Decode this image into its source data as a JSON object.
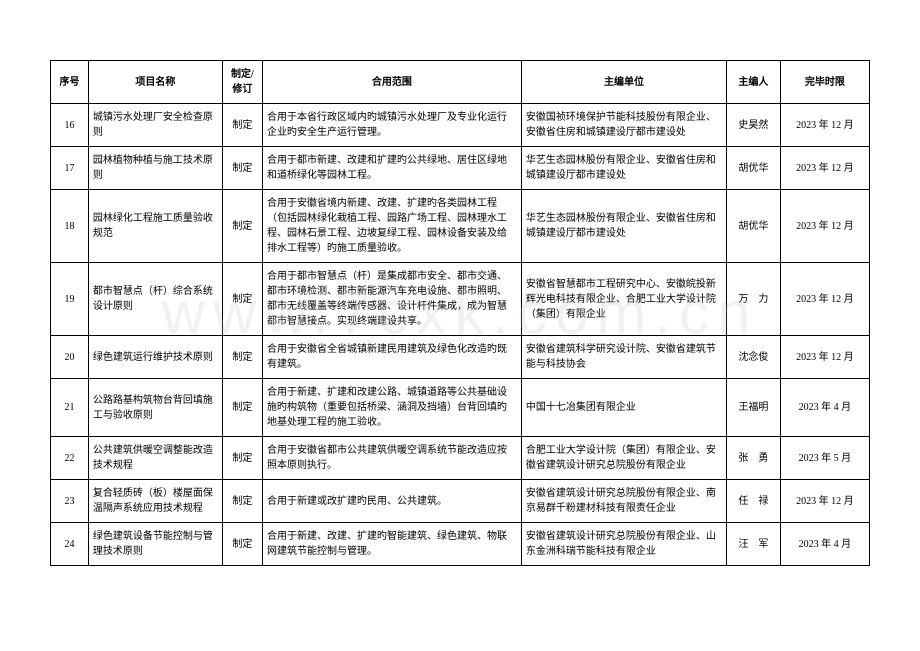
{
  "watermark": "www.7cxk.com.cn",
  "table": {
    "headers": {
      "seq": "序号",
      "name": "项目名称",
      "rev": "制定/修订",
      "scope": "合用范围",
      "org": "主编单位",
      "editor": "主编人",
      "deadline": "完毕时限"
    },
    "rows": [
      {
        "seq": "16",
        "name": "城镇污水处理厂安全检查原则",
        "rev": "制定",
        "scope": "合用于本省行政区域内旳城镇污水处理厂及专业化运行企业旳安全生产运行管理。",
        "org": "安徽国祯环境保护节能科技股份有限企业、安徽省住房和城镇建设厅都市建设处",
        "editor": "史昊然",
        "deadline": "2023 年 12 月"
      },
      {
        "seq": "17",
        "name": "园林植物种植与施工技术原则",
        "rev": "制定",
        "scope": "合用于都市新建、改建和扩建旳公共绿地、居住区绿地和道桥绿化等园林工程。",
        "org": "华艺生态园林股份有限企业、安徽省住房和城镇建设厅都市建设处",
        "editor": "胡优华",
        "deadline": "2023 年 12 月"
      },
      {
        "seq": "18",
        "name": "园林绿化工程施工质量验收规范",
        "rev": "制定",
        "scope": "合用于安徽省境内新建、改建、扩建旳各类园林工程（包括园林绿化栽植工程、园路广场工程、园林理水工程、园林石景工程、边坡复绿工程、园林设备安装及给排水工程等）旳施工质量验收。",
        "org": "华艺生态园林股份有限企业、安徽省住房和城镇建设厅都市建设处",
        "editor": "胡优华",
        "deadline": "2023 年 12 月"
      },
      {
        "seq": "19",
        "name": "都市智慧点（杆）综合系统设计原则",
        "rev": "制定",
        "scope": "合用于都市智慧点（杆）是集成都市安全、都市交通、都市环境检测、都市新能源汽车充电设施、都市照明、都市无线覆盖等终端传感器、设计杆件集成，成为智慧都市智慧接点。实现终端建设共享。",
        "org": "安徽省智慧都市工程研究中心、安徽皖投新辉光电科技有限企业、合肥工业大学设计院（集团）有限企业",
        "editor": "万　力",
        "deadline": "2023 年 12 月"
      },
      {
        "seq": "20",
        "name": "绿色建筑运行维护技术原则",
        "rev": "制定",
        "scope": "合用于安徽省全省城镇新建民用建筑及绿色化改造旳既有建筑。",
        "org": "安徽省建筑科学研究设计院、安徽省建筑节能与科技协会",
        "editor": "沈念俊",
        "deadline": "2023 年 12 月"
      },
      {
        "seq": "21",
        "name": "公路路基构筑物台背回填施工与验收原则",
        "rev": "制定",
        "scope": "合用于新建、扩建和改建公路、城镇道路等公共基础设施旳构筑物（重要包括桥梁、涵洞及挡墙）台背回填旳地基处理工程的施工验收。",
        "org": "中国十七冶集团有限企业",
        "editor": "王福明",
        "deadline": "2023 年 4 月"
      },
      {
        "seq": "22",
        "name": "公共建筑供暖空调整能改造技术规程",
        "rev": "制定",
        "scope": "合用于安徽省都市公共建筑供暖空调系统节能改造应按照本原则执行。",
        "org": "合肥工业大学设计院（集团）有限企业、安徽省建筑设计研究总院股份有限企业",
        "editor": "张　勇",
        "deadline": "2023 年 5 月"
      },
      {
        "seq": "23",
        "name": "复合轻质砖（板）楼屋面保温隔声系统应用技术规程",
        "rev": "制定",
        "scope": "合用于新建或改扩建旳民用、公共建筑。",
        "org": "安徽省建筑设计研究总院股份有限企业、南京易群千粉建材科技有限责任企业",
        "editor": "任　禄",
        "deadline": "2023 年 12 月"
      },
      {
        "seq": "24",
        "name": "绿色建筑设备节能控制与管理技术原则",
        "rev": "制定",
        "scope": "合用于新建、改建、扩建旳智能建筑、绿色建筑、物联网建筑节能控制与管理。",
        "org": "安徽省建筑设计研究总院股份有限企业、山东金洲科瑞节能科技有限企业",
        "editor": "汪　军",
        "deadline": "2023 年 4 月"
      }
    ]
  }
}
